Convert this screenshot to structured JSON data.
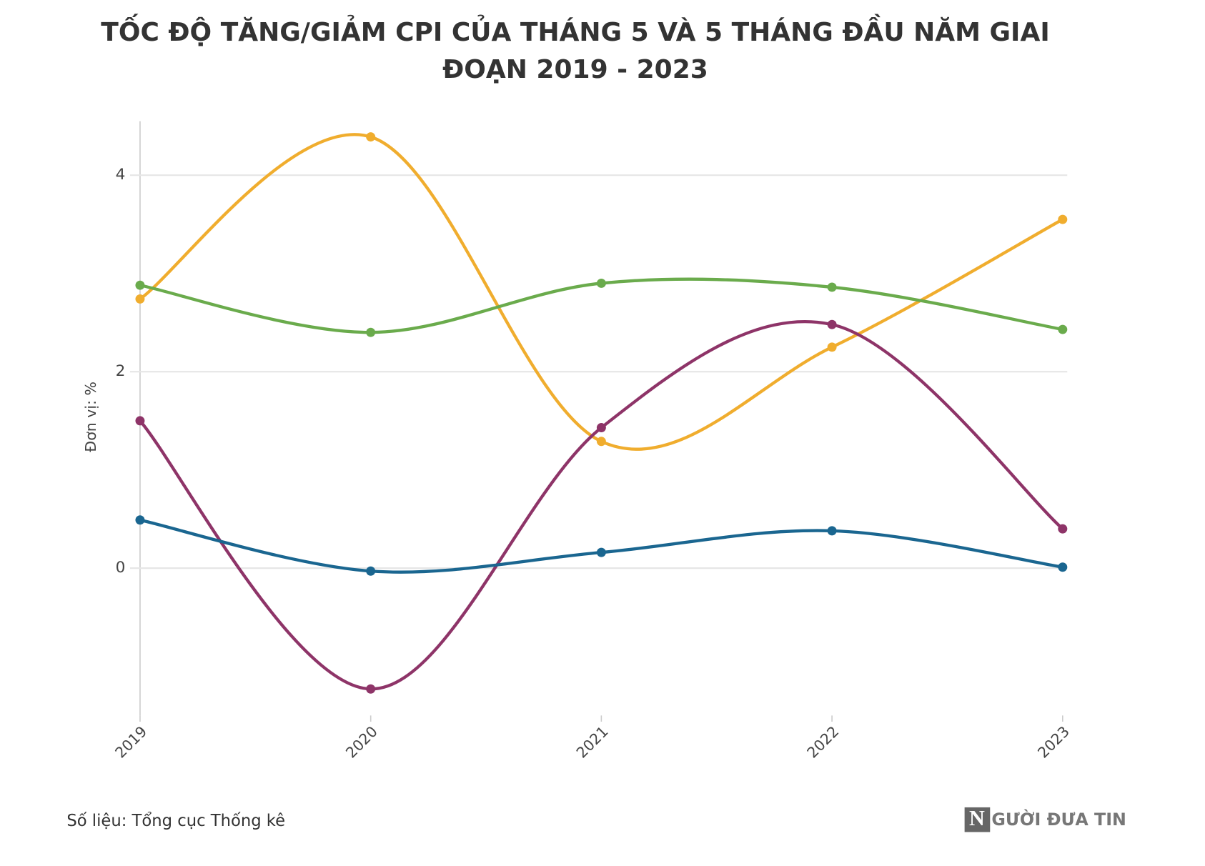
{
  "chart_data": {
    "type": "line",
    "title": "TỐC ĐỘ TĂNG/GIẢM CPI CỦA THÁNG 5 VÀ 5 THÁNG ĐẦU NĂM GIAI ĐOẠN 2019 - 2023",
    "y_label": "Đơn vị: %",
    "source": "Số liệu: Tổng cục Thống kê",
    "logo_mark": "N",
    "logo_text": "GƯỜI ĐƯA TIN",
    "categories": [
      "2019",
      "2020",
      "2021",
      "2022",
      "2023"
    ],
    "series": [
      {
        "color": "#f0ad2e",
        "values": [
          2.74,
          4.39,
          1.29,
          2.25,
          3.55
        ]
      },
      {
        "color": "#6aab4c",
        "values": [
          2.88,
          2.4,
          2.9,
          2.86,
          2.43
        ]
      },
      {
        "color": "#8e3468",
        "values": [
          1.5,
          -1.23,
          1.43,
          2.48,
          0.4
        ]
      },
      {
        "color": "#1a6690",
        "values": [
          0.49,
          -0.03,
          0.16,
          0.38,
          0.01
        ]
      }
    ],
    "ylim": [
      -1.5,
      4.55
    ],
    "yticks": [
      0,
      2,
      4
    ],
    "grid": true,
    "smooth": true
  }
}
